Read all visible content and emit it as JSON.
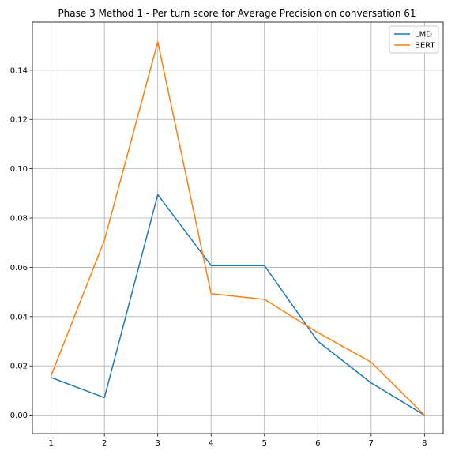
{
  "chart_data": {
    "type": "line",
    "title": "Phase 3 Method 1 - Per turn score for Average Precision on conversation 61",
    "xlabel": "",
    "ylabel": "",
    "x": [
      1,
      2,
      3,
      4,
      5,
      6,
      7,
      8
    ],
    "xticks": [
      "1",
      "2",
      "3",
      "4",
      "5",
      "6",
      "7",
      "8"
    ],
    "yticks": [
      0.0,
      0.02,
      0.04,
      0.06,
      0.08,
      0.1,
      0.12,
      0.14
    ],
    "ytick_labels": [
      "0.00",
      "0.02",
      "0.04",
      "0.06",
      "0.08",
      "0.10",
      "0.12",
      "0.14"
    ],
    "xlim": [
      0.65,
      8.35
    ],
    "ylim": [
      -0.0075,
      0.1595
    ],
    "grid": true,
    "legend_position": "top-right",
    "series": [
      {
        "name": "LMD",
        "color": "#1f77b4",
        "values": [
          0.0153,
          0.0071,
          0.0895,
          0.0607,
          0.0607,
          0.03,
          0.0131,
          0.0
        ]
      },
      {
        "name": "BERT",
        "color": "#ff7f0e",
        "values": [
          0.016,
          0.071,
          0.1515,
          0.0493,
          0.047,
          0.0335,
          0.0215,
          0.0
        ]
      }
    ]
  }
}
